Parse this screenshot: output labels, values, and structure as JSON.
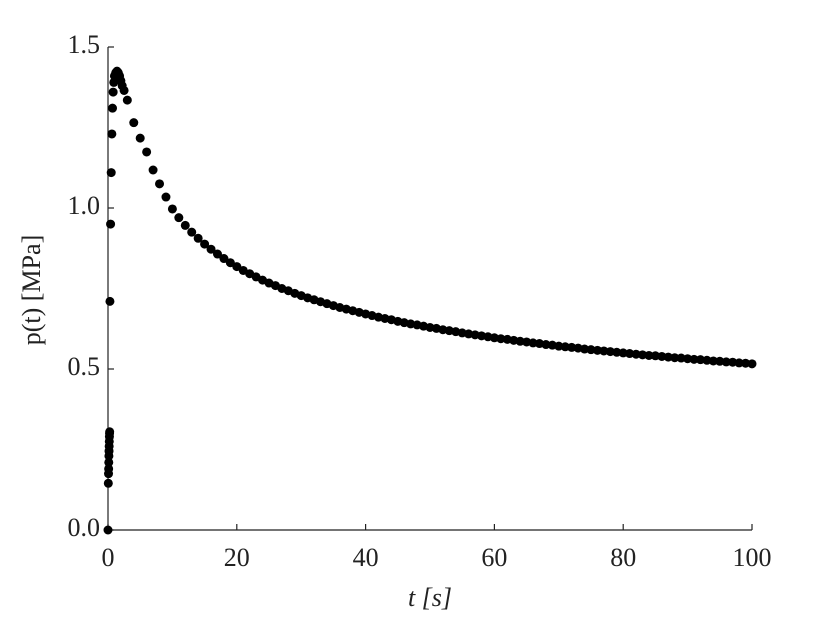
{
  "chart_data": {
    "type": "scatter",
    "x_label": "t [s]",
    "y_label": "p(t)  [MPa]",
    "color": "#000000",
    "xlim": [
      0,
      100
    ],
    "ylim": [
      0,
      1.5
    ],
    "xticks": [
      0,
      20,
      40,
      60,
      80,
      100
    ],
    "yticks": [
      {
        "value": 0,
        "label": "0.0"
      },
      0.5,
      {
        "value": 1,
        "label": "1.0"
      },
      1.5
    ],
    "x": [
      0,
      0.05,
      0.08,
      0.1,
      0.12,
      0.14,
      0.16,
      0.18,
      0.2,
      0.22,
      0.24,
      0.26,
      0.3,
      0.4,
      0.5,
      0.6,
      0.7,
      0.8,
      0.9,
      1.0,
      1.2,
      1.4,
      1.6,
      1.8,
      2.0,
      2.2,
      2.5,
      3,
      4,
      5,
      6,
      7,
      8,
      9,
      10,
      11,
      12,
      13,
      14,
      15,
      16,
      17,
      18,
      19,
      20,
      21,
      22,
      23,
      24,
      25,
      26,
      27,
      28,
      29,
      30,
      31,
      32,
      33,
      34,
      35,
      36,
      37,
      38,
      39,
      40,
      41,
      42,
      43,
      44,
      45,
      46,
      47,
      48,
      49,
      50,
      51,
      52,
      53,
      54,
      55,
      56,
      57,
      58,
      59,
      60,
      61,
      62,
      63,
      64,
      65,
      66,
      67,
      68,
      69,
      70,
      71,
      72,
      73,
      74,
      75,
      76,
      77,
      78,
      79,
      80,
      81,
      82,
      83,
      84,
      85,
      86,
      87,
      88,
      89,
      90,
      91,
      92,
      93,
      94,
      95,
      96,
      97,
      98,
      99,
      100
    ],
    "values": [
      0,
      0.145,
      0.175,
      0.19,
      0.21,
      0.23,
      0.245,
      0.26,
      0.275,
      0.29,
      0.3,
      0.305,
      0.71,
      0.95,
      1.11,
      1.23,
      1.31,
      1.36,
      1.39,
      1.41,
      1.42,
      1.425,
      1.42,
      1.41,
      1.395,
      1.38,
      1.365,
      1.335,
      1.265,
      1.217,
      1.174,
      1.118,
      1.075,
      1.034,
      0.997,
      0.97,
      0.946,
      0.925,
      0.906,
      0.888,
      0.872,
      0.857,
      0.843,
      0.83,
      0.818,
      0.806,
      0.796,
      0.786,
      0.776,
      0.767,
      0.759,
      0.75,
      0.743,
      0.735,
      0.728,
      0.721,
      0.715,
      0.709,
      0.703,
      0.697,
      0.691,
      0.686,
      0.681,
      0.676,
      0.671,
      0.666,
      0.661,
      0.657,
      0.653,
      0.648,
      0.644,
      0.64,
      0.637,
      0.633,
      0.629,
      0.626,
      0.622,
      0.619,
      0.616,
      0.612,
      0.609,
      0.606,
      0.603,
      0.6,
      0.597,
      0.594,
      0.592,
      0.589,
      0.586,
      0.584,
      0.581,
      0.579,
      0.576,
      0.574,
      0.571,
      0.569,
      0.567,
      0.565,
      0.562,
      0.56,
      0.558,
      0.556,
      0.554,
      0.552,
      0.55,
      0.548,
      0.546,
      0.544,
      0.542,
      0.541,
      0.539,
      0.537,
      0.535,
      0.534,
      0.532,
      0.53,
      0.529,
      0.527,
      0.525,
      0.524,
      0.522,
      0.521,
      0.519,
      0.518,
      0.516
    ]
  }
}
